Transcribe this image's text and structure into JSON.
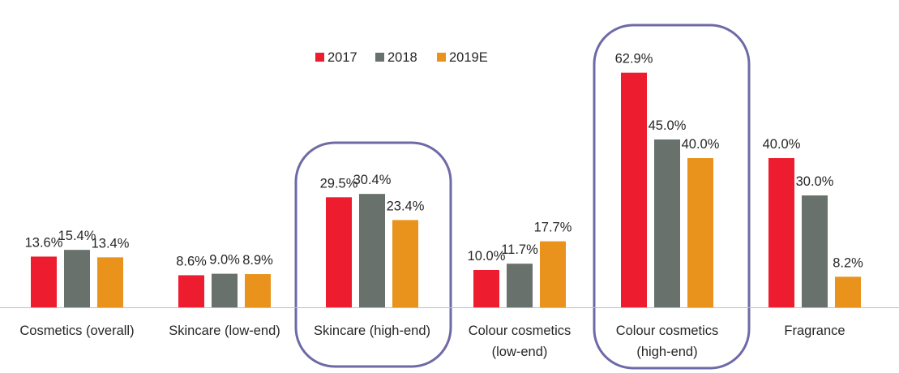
{
  "chart_data": {
    "type": "bar",
    "title": "",
    "xlabel": "",
    "ylabel": "",
    "ylim": [
      0,
      70
    ],
    "grid": false,
    "legend_position": "top-center",
    "categories": [
      [
        "Cosmetics (overall)"
      ],
      [
        "Skincare (low-end)"
      ],
      [
        "Skincare (high-end)"
      ],
      [
        "Colour cosmetics",
        "(low-end)"
      ],
      [
        "Colour cosmetics",
        "(high-end)"
      ],
      [
        "Fragrance"
      ]
    ],
    "highlighted_categories": [
      2,
      4
    ],
    "series": [
      {
        "name": "2017",
        "color": "#ed1c2e",
        "values": [
          13.6,
          8.6,
          29.5,
          10.0,
          62.9,
          40.0
        ],
        "labels": [
          "13.6%",
          "8.6%",
          "29.5%",
          "10.0%",
          "62.9%",
          "40.0%"
        ]
      },
      {
        "name": "2018",
        "color": "#68716c",
        "values": [
          15.4,
          9.0,
          30.4,
          11.7,
          45.0,
          30.0
        ],
        "labels": [
          "15.4%",
          "9.0%",
          "30.4%",
          "11.7%",
          "45.0%",
          "30.0%"
        ]
      },
      {
        "name": "2019E",
        "color": "#e9931c",
        "values": [
          13.4,
          8.9,
          23.4,
          17.7,
          40.0,
          8.2
        ],
        "labels": [
          "13.4%",
          "8.9%",
          "23.4%",
          "17.7%",
          "40.0%",
          "8.2%"
        ]
      }
    ],
    "highlight_color": "#6e6aa5",
    "axis_color": "#bfbfbf"
  }
}
